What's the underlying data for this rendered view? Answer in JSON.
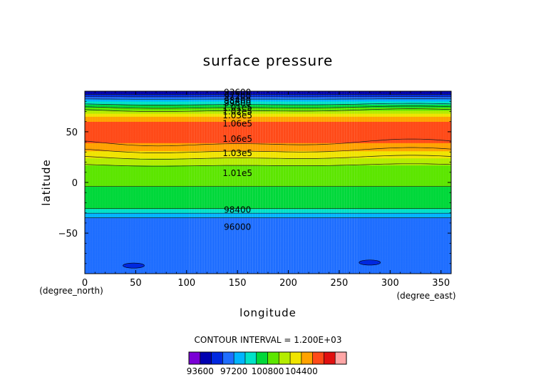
{
  "chart_data": {
    "type": "heatmap",
    "title": "surface pressure",
    "xlabel": "longitude",
    "ylabel": "latitude",
    "x_unit_label": "(degree_east)",
    "y_unit_label": "(degree_north)",
    "xlim": [
      0,
      360
    ],
    "ylim": [
      -90,
      90
    ],
    "x_ticks": [
      0,
      50,
      100,
      150,
      200,
      250,
      300,
      350
    ],
    "y_ticks": [
      -50,
      0,
      50
    ],
    "contour_interval_text": "CONTOUR INTERVAL = 1.200E+03",
    "zonal_profile": {
      "latitudes": [
        -90,
        -88,
        -80,
        -70,
        -60,
        -50,
        -40,
        -36,
        -33,
        -30,
        -27,
        -24,
        -20,
        -14,
        -8,
        0,
        8,
        14,
        20,
        25,
        30,
        35,
        40,
        45,
        50,
        55,
        60,
        65,
        68,
        72,
        76,
        80,
        83,
        86,
        88,
        90
      ],
      "values": [
        96700,
        96700,
        96700,
        96700,
        96700,
        96700,
        96700,
        96900,
        97700,
        98500,
        99300,
        99900,
        100400,
        100500,
        100700,
        100900,
        101100,
        101600,
        102400,
        103300,
        104200,
        105000,
        105800,
        106300,
        106600,
        106500,
        105600,
        104400,
        103200,
        101600,
        100000,
        98400,
        96800,
        95200,
        94300,
        93700
      ]
    },
    "low_pressure_regions": [
      {
        "lon": 48,
        "lat": -82,
        "value": 94800
      },
      {
        "lon": 280,
        "lat": -79,
        "value": 94800
      }
    ],
    "contour_labels": [
      {
        "text": "93600",
        "lon": 150,
        "lat": 89
      },
      {
        "text": "97200",
        "lon": 150,
        "lat": 85
      },
      {
        "text": "98400",
        "lon": 150,
        "lat": 81
      },
      {
        "text": "99600",
        "lon": 150,
        "lat": 78
      },
      {
        "text": "1.01e5",
        "lon": 150,
        "lat": 74
      },
      {
        "text": "1.02e5",
        "lon": 150,
        "lat": 70
      },
      {
        "text": "1.03e5",
        "lon": 150,
        "lat": 66
      },
      {
        "text": "1.06e5",
        "lon": 150,
        "lat": 58
      },
      {
        "text": "1.06e5",
        "lon": 150,
        "lat": 43
      },
      {
        "text": "1.03e5",
        "lon": 150,
        "lat": 29
      },
      {
        "text": "1.01e5",
        "lon": 150,
        "lat": 9
      },
      {
        "text": "98400",
        "lon": 150,
        "lat": -27
      },
      {
        "text": "96000",
        "lon": 150,
        "lat": -44
      }
    ],
    "colorbar": {
      "levels": [
        93600,
        94800,
        96000,
        97200,
        98400,
        99600,
        100800,
        102000,
        103200,
        104400,
        105600,
        106800
      ],
      "tick_labels": [
        "93600",
        "97200",
        "100800",
        "104400"
      ],
      "colors": [
        "#7a00d6",
        "#0000b0",
        "#0028e0",
        "#1f6eff",
        "#00b4ff",
        "#00e2c8",
        "#00d83a",
        "#5ce600",
        "#b4ec00",
        "#f0e400",
        "#ffa200",
        "#ff4a18",
        "#e10f0f",
        "#ffa6a6"
      ]
    }
  }
}
